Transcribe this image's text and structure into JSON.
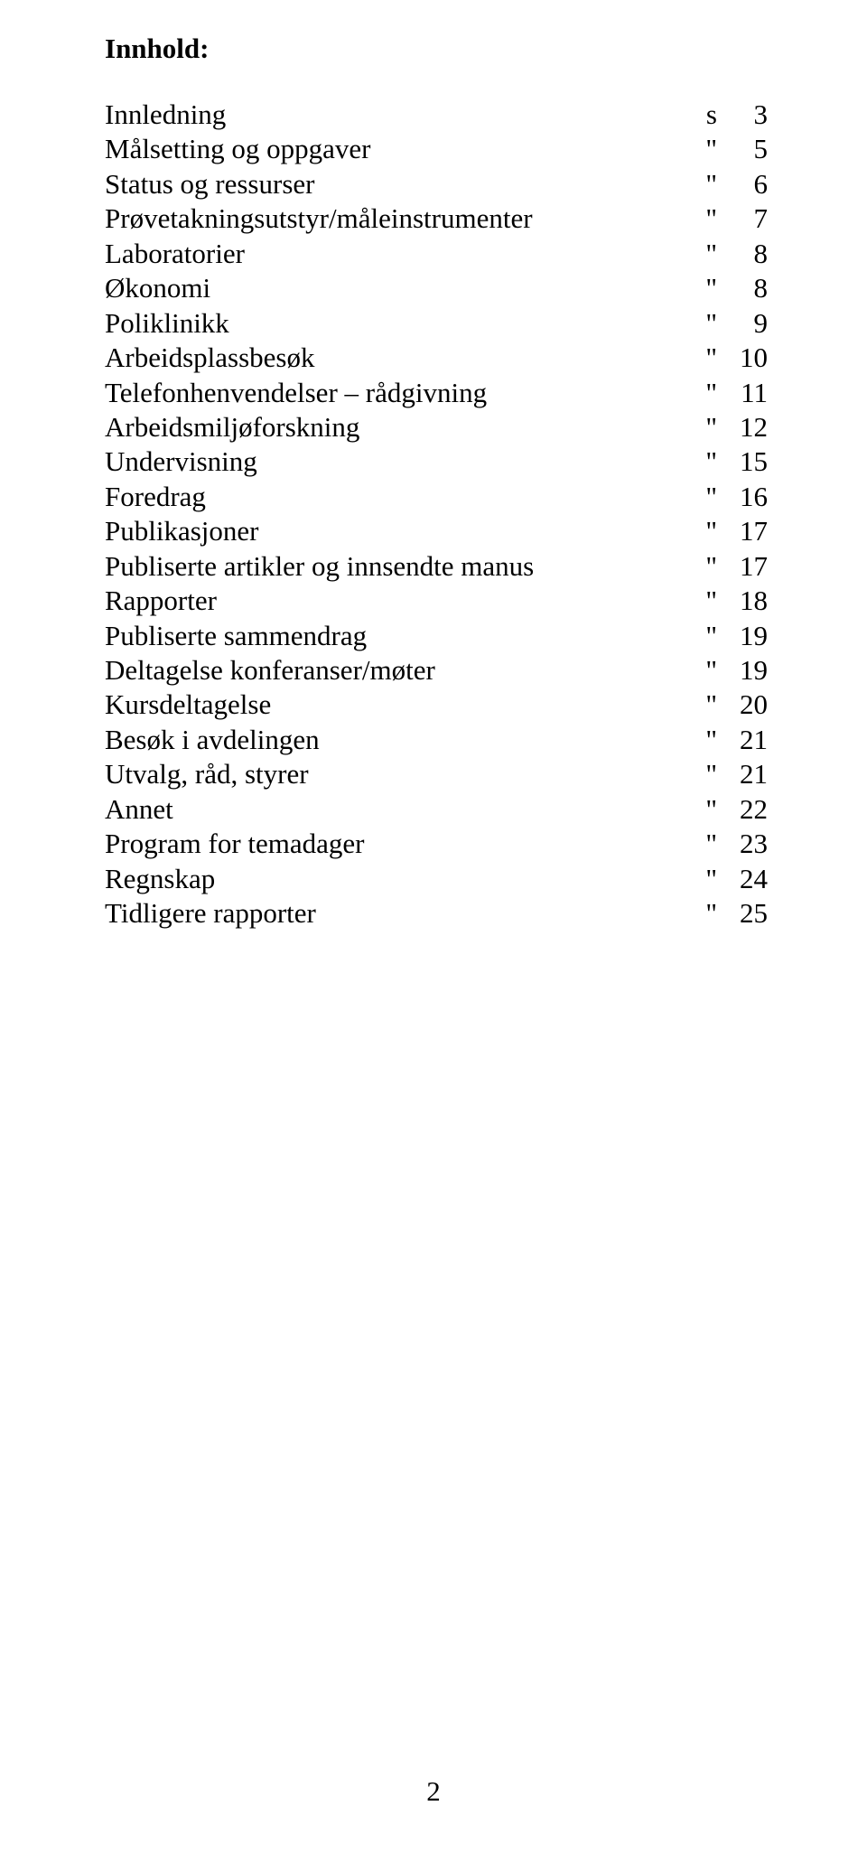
{
  "heading": "Innhold:",
  "toc_items": [
    {
      "label": "Innledning",
      "mark": "s",
      "page": "3"
    },
    {
      "label": "Målsetting og oppgaver",
      "mark": "\"",
      "page": "5"
    },
    {
      "label": "Status og ressurser",
      "mark": "\"",
      "page": "6"
    },
    {
      "label": "Prøvetakningsutstyr/måleinstrumenter",
      "mark": "\"",
      "page": "7"
    },
    {
      "label": "Laboratorier",
      "mark": "\"",
      "page": "8"
    },
    {
      "label": "Økonomi",
      "mark": "\"",
      "page": "8"
    },
    {
      "label": "Poliklinikk",
      "mark": "\"",
      "page": "9"
    },
    {
      "label": "Arbeidsplassbesøk",
      "mark": "\"",
      "page": "10"
    },
    {
      "label": "Telefonhenvendelser – rådgivning",
      "mark": "\"",
      "page": "11"
    },
    {
      "label": "Arbeidsmiljøforskning",
      "mark": "\"",
      "page": "12"
    },
    {
      "label": "Undervisning",
      "mark": "\"",
      "page": "15"
    },
    {
      "label": "Foredrag",
      "mark": "\"",
      "page": "16"
    },
    {
      "label": "Publikasjoner",
      "mark": "\"",
      "page": "17"
    },
    {
      "label": "Publiserte artikler og innsendte manus",
      "mark": "\"",
      "page": "17"
    },
    {
      "label": "Rapporter",
      "mark": "\"",
      "page": "18"
    },
    {
      "label": "Publiserte sammendrag",
      "mark": "\"",
      "page": "19"
    },
    {
      "label": "Deltagelse konferanser/møter",
      "mark": "\"",
      "page": "19"
    },
    {
      "label": "Kursdeltagelse",
      "mark": "\"",
      "page": "20"
    },
    {
      "label": "Besøk i avdelingen",
      "mark": "\"",
      "page": "21"
    },
    {
      "label": "Utvalg, råd, styrer",
      "mark": "\"",
      "page": "21"
    },
    {
      "label": "Annet",
      "mark": "\"",
      "page": "22"
    },
    {
      "label": "Program for temadager",
      "mark": "\"",
      "page": "23"
    },
    {
      "label": "Regnskap",
      "mark": "\"",
      "page": "24"
    },
    {
      "label": "Tidligere rapporter",
      "mark": "\"",
      "page": "25"
    }
  ],
  "page_number": "2",
  "colors": {
    "text": "#000000",
    "background": "#ffffff"
  },
  "fonts": {
    "body_family": "Times New Roman, serif",
    "body_size_pt": 31
  }
}
